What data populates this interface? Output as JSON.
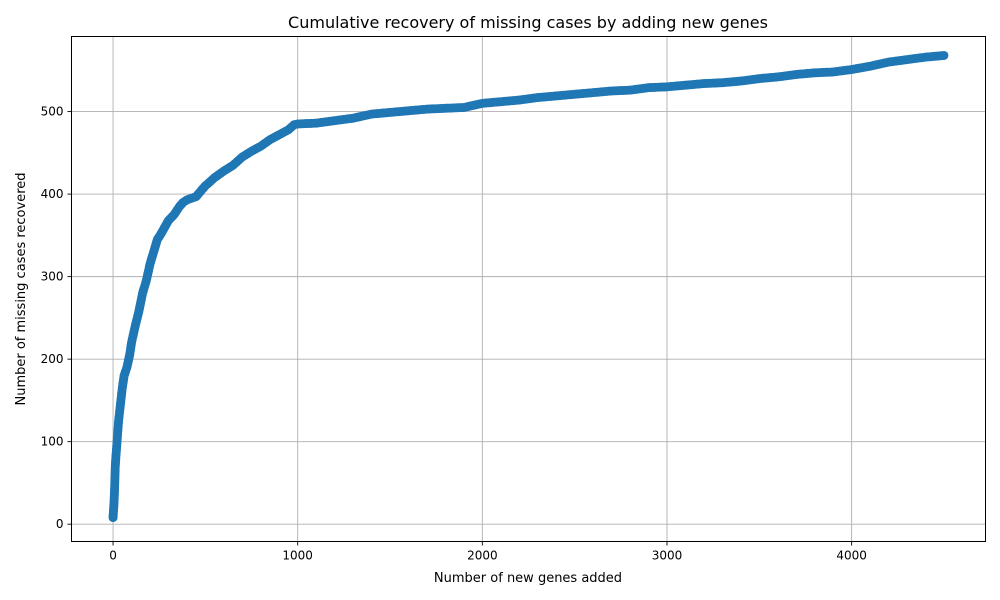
{
  "colors": {
    "marker": "#1f77b4",
    "grid": "#b0b0b0",
    "axis": "#000000"
  },
  "chart_data": {
    "type": "scatter",
    "title": "Cumulative recovery of missing cases by adding new genes",
    "xlabel": "Number of new genes added",
    "ylabel": "Number of missing cases recovered",
    "xlim": [
      -225,
      4725
    ],
    "ylim": [
      -21,
      591
    ],
    "xticks": [
      0,
      1000,
      2000,
      3000,
      4000
    ],
    "yticks": [
      0,
      100,
      200,
      300,
      400,
      500
    ],
    "grid": true,
    "legend": "none",
    "series": [
      {
        "marker": "circle",
        "points": [
          [
            0,
            8
          ],
          [
            2,
            15
          ],
          [
            5,
            25
          ],
          [
            8,
            40
          ],
          [
            10,
            55
          ],
          [
            12,
            70
          ],
          [
            15,
            80
          ],
          [
            20,
            95
          ],
          [
            25,
            110
          ],
          [
            30,
            125
          ],
          [
            40,
            145
          ],
          [
            50,
            165
          ],
          [
            60,
            180
          ],
          [
            75,
            190
          ],
          [
            90,
            205
          ],
          [
            100,
            220
          ],
          [
            120,
            240
          ],
          [
            140,
            258
          ],
          [
            160,
            280
          ],
          [
            180,
            295
          ],
          [
            200,
            315
          ],
          [
            220,
            330
          ],
          [
            240,
            345
          ],
          [
            260,
            352
          ],
          [
            280,
            360
          ],
          [
            300,
            368
          ],
          [
            330,
            375
          ],
          [
            360,
            385
          ],
          [
            380,
            390
          ],
          [
            400,
            393
          ],
          [
            450,
            397
          ],
          [
            480,
            405
          ],
          [
            500,
            410
          ],
          [
            550,
            420
          ],
          [
            600,
            428
          ],
          [
            650,
            435
          ],
          [
            700,
            445
          ],
          [
            750,
            452
          ],
          [
            800,
            458
          ],
          [
            850,
            466
          ],
          [
            900,
            472
          ],
          [
            950,
            478
          ],
          [
            980,
            484
          ],
          [
            1000,
            485
          ],
          [
            1100,
            486
          ],
          [
            1200,
            489
          ],
          [
            1300,
            492
          ],
          [
            1400,
            497
          ],
          [
            1500,
            499
          ],
          [
            1600,
            501
          ],
          [
            1700,
            503
          ],
          [
            1800,
            504
          ],
          [
            1900,
            505
          ],
          [
            2000,
            510
          ],
          [
            2100,
            512
          ],
          [
            2200,
            514
          ],
          [
            2300,
            517
          ],
          [
            2400,
            519
          ],
          [
            2500,
            521
          ],
          [
            2600,
            523
          ],
          [
            2700,
            525
          ],
          [
            2800,
            526
          ],
          [
            2900,
            529
          ],
          [
            3000,
            530
          ],
          [
            3100,
            532
          ],
          [
            3200,
            534
          ],
          [
            3300,
            535
          ],
          [
            3400,
            537
          ],
          [
            3500,
            540
          ],
          [
            3600,
            542
          ],
          [
            3700,
            545
          ],
          [
            3800,
            547
          ],
          [
            3900,
            548
          ],
          [
            4000,
            551
          ],
          [
            4100,
            555
          ],
          [
            4200,
            560
          ],
          [
            4300,
            563
          ],
          [
            4400,
            566
          ],
          [
            4500,
            568
          ]
        ]
      }
    ]
  }
}
